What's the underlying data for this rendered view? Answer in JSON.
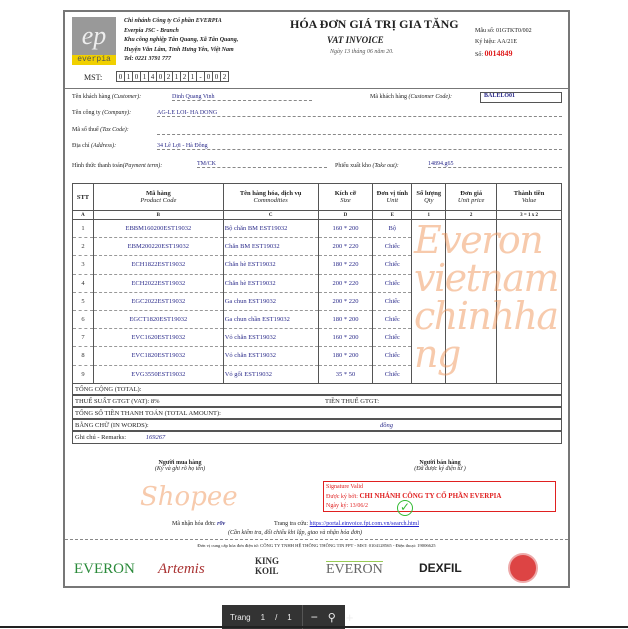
{
  "seller": {
    "logo_text": "everpia",
    "name": "Chi nhánh Công ty Cổ phần EVERPIA",
    "name_en": "Everpia JSC - Branch",
    "address1": "Khu công nghiệp Tân Quang, Xã Tân Quang,",
    "address2": "Huyện Văn Lâm, Tỉnh Hưng Yên, Việt Nam",
    "tel": "Tel: 0221 3791 777",
    "mst_label": "MST:",
    "mst": [
      "0",
      "1",
      "0",
      "1",
      "4",
      "0",
      "2",
      "1",
      "2",
      "1",
      "-",
      "0",
      "0",
      "2"
    ]
  },
  "title": "HÓA ĐƠN GIÁ TRỊ GIA TĂNG",
  "subtitle": "VAT INVOICE",
  "date": "Ngày 13  tháng 06 năm 20.",
  "form": {
    "mau_so": "Mẫu số: 01GTKT0/002",
    "ky_hieu": "Ký hiệu: AA/21E",
    "so_label": "Số:",
    "so": "0014849"
  },
  "customer": {
    "name_label": "Tên khách hàng",
    "name_label_en": "(Customer):",
    "name": "Dinh Quang Vinh",
    "code_label": "Mã khách hàng",
    "code_label_en": "(Customer Code):",
    "code": "BALELO01",
    "company_label": "Tên công ty",
    "company_label_en": "(Company):",
    "company": "AG-LE LOI- HA DONG",
    "tax_label": "Mã số thuế",
    "tax_label_en": "(Tax Code):",
    "address_label": "Địa chỉ",
    "address_label_en": "(Address):",
    "address": "34 Lê Lợi - Hà Đông",
    "payment_label": "Hình thức thanh toán",
    "payment_label_en": "(Payment term):",
    "payment": "TM/CK",
    "takeout_label": "Phiếu xuất kho",
    "takeout_label_en": "(Take out):",
    "takeout": "14894.g65"
  },
  "table": {
    "headers": [
      [
        "STT",
        ""
      ],
      [
        "Mã hàng",
        "Product Code"
      ],
      [
        "Tên hàng hóa, dịch vụ",
        "Commodities"
      ],
      [
        "Kích cỡ",
        "Size"
      ],
      [
        "Đơn vị tính",
        "Unit"
      ],
      [
        "Số lượng",
        "Qty"
      ],
      [
        "Đơn giá",
        "Unit price"
      ],
      [
        "Thành tiền",
        "Value"
      ]
    ],
    "letters": [
      "A",
      "B",
      "C",
      "D",
      "E",
      "1",
      "2",
      "3 = 1 x 2"
    ],
    "rows": [
      [
        "1",
        "EBBM160200EST19032",
        "Bộ chăn BM EST19032",
        "160 * 200",
        "Bộ"
      ],
      [
        "2",
        "EBM200220EST19032",
        "Chăn BM EST19032",
        "200 * 220",
        "Chiếc"
      ],
      [
        "3",
        "ECH1822EST19032",
        "Chăn hè EST19032",
        "180 * 220",
        "Chiếc"
      ],
      [
        "4",
        "ECH2022EST19032",
        "Chăn hè EST19032",
        "200 * 220",
        "Chiếc"
      ],
      [
        "5",
        "EGC2022EST19032",
        "Ga chun EST19032",
        "200 * 220",
        "Chiếc"
      ],
      [
        "6",
        "EGCT1820EST19032",
        "Ga chun chần EST19032",
        "180 * 200",
        "Chiếc"
      ],
      [
        "7",
        "EVC1620EST19032",
        "Vỏ chăn EST19032",
        "160 * 200",
        "Chiếc"
      ],
      [
        "8",
        "EVC1820EST19032",
        "Vỏ chăn EST19032",
        "180 * 200",
        "Chiếc"
      ],
      [
        "9",
        "EVG3550EST19032",
        "Vỏ gối EST19032",
        "35 * 50",
        "Chiếc"
      ]
    ]
  },
  "totals": {
    "total": "TỔNG CỘNG (TOTAL):",
    "vat_rate": "THUẾ SUẤT GTGT (VAT): 8%",
    "vat_amount": "TIỀN THUẾ GTGT:",
    "total_amount": "TỔNG SỐ TIỀN THANH TOÁN (TOTAL AMOUNT):",
    "in_words": "BẰNG CHỮ (IN WORDS):",
    "dong": "đồng",
    "remarks_label": "Ghi chú - Remarks:",
    "remarks": "169267"
  },
  "signatures": {
    "buyer": "Người mua hàng",
    "buyer_note": "(Ký và ghi rõ họ tên)",
    "seller": "Người bán hàng",
    "seller_note": "(Đã được ký điện tử )",
    "valid": "Signature Valid",
    "signed_by_label": "Được ký bởi:",
    "signed_by": "CHI NHÁNH CÔNG TY CỔ PHẦN EVERPIA",
    "sign_date": "Ngày ký: 13/06/2"
  },
  "lookup": {
    "code_label": "Mã nhận hóa đơn:",
    "code": "r0v",
    "portal_label": "Trang tra cứu:",
    "portal_url": "https://portal.einvoice.fpt.com.vn/search.html",
    "note": "(Cần kiểm tra, đối chiếu khi lập, giao và nhận hóa đơn)",
    "provider": "Đơn vị cung cấp hóa đơn điện tử: CÔNG TY TNHH HỆ THỐNG THÔNG TIN FPT - MST: 0104128565 - Điện thoại: 19006625"
  },
  "brands": [
    "EVERON",
    "Artemis",
    "KING KOIL",
    "EVERON",
    "DEXFIL"
  ],
  "watermark": {
    "line1": "Shopee",
    "line2": "Everonvietnamchinhhang"
  },
  "viewer": {
    "page_label": "Trang",
    "page": "1",
    "sep": "/",
    "total": "1"
  },
  "colors": {
    "red": "#e02020",
    "blue": "#2a2a8a",
    "logo_yellow": "#f0d000"
  }
}
